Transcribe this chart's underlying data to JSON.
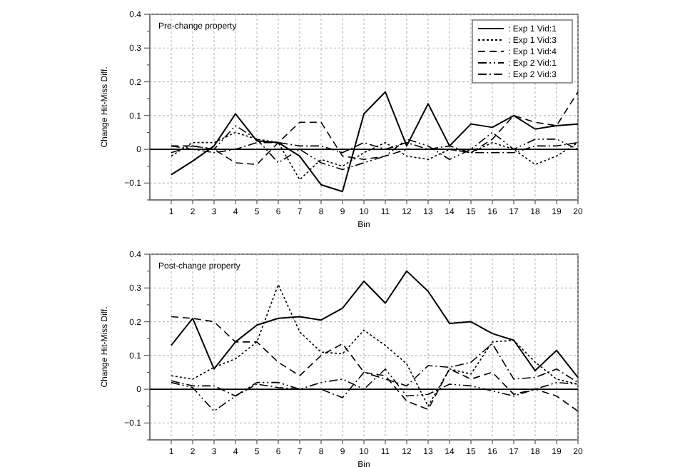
{
  "chart_data": [
    {
      "type": "line",
      "title": "Pre-change property",
      "xlabel": "Bin",
      "ylabel": "Change Hit-Miss Diff.",
      "x": [
        1,
        2,
        3,
        4,
        5,
        6,
        7,
        8,
        9,
        10,
        11,
        12,
        13,
        14,
        15,
        16,
        17,
        18,
        19,
        20
      ],
      "xlim": [
        0,
        20
      ],
      "xticks": [
        1,
        2,
        3,
        4,
        5,
        6,
        7,
        8,
        9,
        10,
        11,
        12,
        13,
        14,
        15,
        16,
        17,
        18,
        19,
        20
      ],
      "ylim": [
        -0.15,
        0.4
      ],
      "yticks": [
        {
          "value": -0.15,
          "label": null
        },
        -0.1,
        {
          "value": -0.05,
          "label": null
        },
        0,
        {
          "value": 0.05,
          "label": null
        },
        0.1,
        {
          "value": 0.15,
          "label": null
        },
        0.2,
        {
          "value": 0.25,
          "label": null
        },
        0.3,
        {
          "value": 0.35,
          "label": null
        },
        0.4
      ],
      "grid": true,
      "legend": "top right",
      "marker": "none",
      "ref_lines": [
        {
          "axis": "y",
          "value": 0,
          "color": "#000000",
          "line_style": "solid"
        }
      ],
      "series": [
        {
          "name": ": Exp 1 Vid:1",
          "color": "#000000",
          "line_style": "solid",
          "values": [
            -0.075,
            -0.035,
            0.01,
            0.105,
            0.025,
            0.02,
            -0.02,
            -0.105,
            -0.125,
            0.105,
            0.17,
            0.01,
            0.135,
            0.01,
            0.075,
            0.065,
            0.1,
            0.06,
            0.07,
            0.075
          ]
        },
        {
          "name": ": Exp 1 Vid:3",
          "color": "#000000",
          "line_style": "dotted",
          "values": [
            -0.02,
            0.02,
            0.02,
            0.05,
            0.03,
            0.02,
            -0.09,
            -0.03,
            -0.05,
            -0.01,
            0.02,
            -0.02,
            -0.03,
            0,
            -0.01,
            0.02,
            0,
            -0.045,
            -0.02,
            0.02
          ]
        },
        {
          "name": ": Exp 1 Vid:4",
          "color": "#000000",
          "line_style": "dashed",
          "values": [
            0.01,
            0.01,
            0,
            -0.04,
            -0.045,
            0.02,
            0.08,
            0.08,
            -0.02,
            -0.03,
            -0.02,
            0,
            0,
            0,
            -0.01,
            0.03,
            0.1,
            0.08,
            0.07,
            0.17
          ]
        },
        {
          "name": ": Exp 2 Vid:1",
          "color": "#000000",
          "line_style": "dashdotdot",
          "values": [
            -0.01,
            0.01,
            0,
            0.07,
            0.03,
            -0.04,
            0,
            -0.04,
            -0.06,
            -0.04,
            -0.02,
            0.03,
            0.01,
            -0.03,
            0,
            0.05,
            0,
            0.03,
            0.03,
            0
          ]
        },
        {
          "name": ": Exp 2 Vid:3",
          "color": "#000000",
          "line_style": "dashdot",
          "values": [
            0.01,
            0,
            -0.01,
            0,
            0.02,
            0.02,
            0.01,
            0.01,
            -0.01,
            0.02,
            0,
            0.02,
            0,
            0.01,
            -0.01,
            -0.01,
            -0.01,
            0.01,
            0.01,
            0.02
          ]
        }
      ]
    },
    {
      "type": "line",
      "title": "Post-change property",
      "xlabel": "Bin",
      "ylabel": "Change Hit-Miss Diff.",
      "x": [
        1,
        2,
        3,
        4,
        5,
        6,
        7,
        8,
        9,
        10,
        11,
        12,
        13,
        14,
        15,
        16,
        17,
        18,
        19,
        20
      ],
      "xlim": [
        0,
        20
      ],
      "xticks": [
        1,
        2,
        3,
        4,
        5,
        6,
        7,
        8,
        9,
        10,
        11,
        12,
        13,
        14,
        15,
        16,
        17,
        18,
        19,
        20
      ],
      "ylim": [
        -0.15,
        0.4
      ],
      "yticks": [
        {
          "value": -0.15,
          "label": null
        },
        -0.1,
        {
          "value": -0.05,
          "label": null
        },
        0,
        {
          "value": 0.05,
          "label": null
        },
        0.1,
        {
          "value": 0.15,
          "label": null
        },
        0.2,
        {
          "value": 0.25,
          "label": null
        },
        0.3,
        {
          "value": 0.35,
          "label": null
        },
        0.4
      ],
      "grid": true,
      "marker": "none",
      "ref_lines": [
        {
          "axis": "y",
          "value": 0,
          "color": "#000000",
          "line_style": "solid"
        }
      ],
      "series": [
        {
          "color": "#000000",
          "line_style": "solid",
          "values": [
            0.13,
            0.21,
            0.06,
            0.14,
            0.19,
            0.21,
            0.215,
            0.205,
            0.24,
            0.32,
            0.255,
            0.35,
            0.29,
            0.195,
            0.2,
            0.165,
            0.145,
            0.055,
            0.115,
            0.035
          ]
        },
        {
          "color": "#000000",
          "line_style": "dotted",
          "values": [
            0.04,
            0.03,
            0.065,
            0.09,
            0.14,
            0.31,
            0.17,
            0.11,
            0.105,
            0.175,
            0.13,
            0.075,
            -0.05,
            0.06,
            0.045,
            0.14,
            0.145,
            0.08,
            0.03,
            0.015
          ]
        },
        {
          "color": "#000000",
          "line_style": "dashed",
          "values": [
            0.215,
            0.21,
            0.2,
            0.14,
            0.14,
            0.08,
            0.04,
            0.1,
            0.135,
            0.05,
            0.04,
            -0.035,
            -0.06,
            0.06,
            0.03,
            0.05,
            -0.015,
            0,
            -0.02,
            -0.065
          ]
        },
        {
          "color": "#000000",
          "line_style": "dashdotdot",
          "values": [
            0.02,
            0.005,
            -0.065,
            -0.02,
            0.02,
            0.02,
            0,
            0.02,
            0.03,
            0,
            0.06,
            -0.02,
            -0.015,
            0.015,
            0.01,
            -0.005,
            -0.02,
            0,
            0.02,
            0.015
          ]
        },
        {
          "color": "#000000",
          "line_style": "dashdot",
          "values": [
            0.025,
            0.01,
            0.01,
            -0.02,
            0.015,
            0.005,
            0,
            0,
            -0.025,
            0.05,
            0.03,
            0.01,
            0.07,
            0.065,
            0.08,
            0.135,
            0.03,
            0.035,
            0.06,
            0.02
          ]
        }
      ]
    }
  ]
}
